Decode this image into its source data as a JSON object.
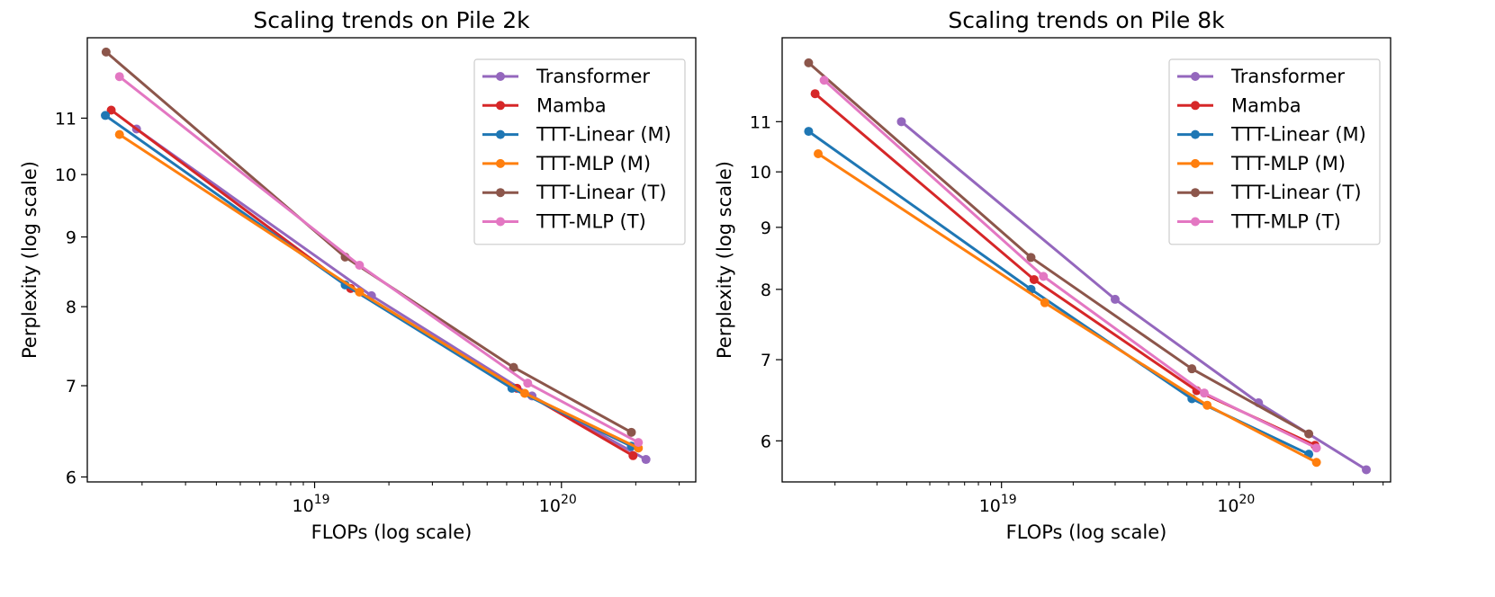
{
  "chart_data": [
    {
      "type": "line",
      "title": "Scaling trends on Pile 2k",
      "xlabel": "FLOPs (log scale)",
      "ylabel": "Perplexity (log scale)",
      "xscale": "log",
      "yscale": "log",
      "xlim": [
        1.2e+18,
        3.5e+20
      ],
      "ylim": [
        5.95,
        12.6
      ],
      "xticks": [
        {
          "value": 1e+19,
          "base": "10",
          "exp": "19"
        },
        {
          "value": 1e+20,
          "base": "10",
          "exp": "20"
        }
      ],
      "yticks": [
        {
          "value": 6,
          "label": "6"
        },
        {
          "value": 7,
          "label": "7"
        },
        {
          "value": 8,
          "label": "8"
        },
        {
          "value": 9,
          "label": "9"
        },
        {
          "value": 10,
          "label": "10"
        },
        {
          "value": 11,
          "label": "11"
        }
      ],
      "legend_position": "top-right",
      "series": [
        {
          "name": "Transformer",
          "color": "#9467bd",
          "x": [
            1.9e+18,
            1.7e+19,
            7.6e+19,
            2.2e+20
          ],
          "y": [
            10.8,
            8.15,
            6.88,
            6.18
          ]
        },
        {
          "name": "Mamba",
          "color": "#d62728",
          "x": [
            1.5e+18,
            1.4e+19,
            6.6e+19,
            1.95e+20
          ],
          "y": [
            11.15,
            8.25,
            6.97,
            6.22
          ]
        },
        {
          "name": "TTT-Linear (M)",
          "color": "#1f77b4",
          "x": [
            1.42e+18,
            1.33e+19,
            6.3e+19,
            1.92e+20
          ],
          "y": [
            11.05,
            8.3,
            6.97,
            6.32
          ]
        },
        {
          "name": "TTT-MLP (M)",
          "color": "#ff7f0e",
          "x": [
            1.62e+18,
            1.52e+19,
            7.1e+19,
            2.05e+20
          ],
          "y": [
            10.7,
            8.2,
            6.91,
            6.3
          ]
        },
        {
          "name": "TTT-Linear (T)",
          "color": "#8c564b",
          "x": [
            1.43e+18,
            1.33e+19,
            6.4e+19,
            1.92e+20
          ],
          "y": [
            12.3,
            8.7,
            7.22,
            6.47
          ]
        },
        {
          "name": "TTT-MLP (T)",
          "color": "#e377c2",
          "x": [
            1.62e+18,
            1.52e+19,
            7.3e+19,
            2.05e+20
          ],
          "y": [
            11.8,
            8.58,
            7.03,
            6.36
          ]
        }
      ]
    },
    {
      "type": "line",
      "title": "Scaling trends on Pile 8k",
      "xlabel": "FLOPs (log scale)",
      "ylabel": "Perplexity (log scale)",
      "xscale": "log",
      "yscale": "log",
      "xlim": [
        1.2e+18,
        4.3e+20
      ],
      "ylim": [
        5.55,
        12.9
      ],
      "xticks": [
        {
          "value": 1e+19,
          "base": "10",
          "exp": "19"
        },
        {
          "value": 1e+20,
          "base": "10",
          "exp": "20"
        }
      ],
      "yticks": [
        {
          "value": 6,
          "label": "6"
        },
        {
          "value": 7,
          "label": "7"
        },
        {
          "value": 8,
          "label": "8"
        },
        {
          "value": 9,
          "label": "9"
        },
        {
          "value": 10,
          "label": "10"
        },
        {
          "value": 11,
          "label": "11"
        }
      ],
      "legend_position": "top-right",
      "series": [
        {
          "name": "Transformer",
          "color": "#9467bd",
          "x": [
            3.8e+18,
            3e+19,
            1.2e+20,
            3.4e+20
          ],
          "y": [
            11.0,
            7.85,
            6.45,
            5.68
          ]
        },
        {
          "name": "Mamba",
          "color": "#d62728",
          "x": [
            1.65e+18,
            1.37e+19,
            6.6e+19,
            2.07e+20
          ],
          "y": [
            11.6,
            8.15,
            6.6,
            5.95
          ]
        },
        {
          "name": "TTT-Linear (M)",
          "color": "#1f77b4",
          "x": [
            1.55e+18,
            1.33e+19,
            6.3e+19,
            1.95e+20
          ],
          "y": [
            10.8,
            8.0,
            6.5,
            5.85
          ]
        },
        {
          "name": "TTT-MLP (M)",
          "color": "#ff7f0e",
          "x": [
            1.7e+18,
            1.52e+19,
            7.3e+19,
            2.1e+20
          ],
          "y": [
            10.35,
            7.8,
            6.42,
            5.76
          ]
        },
        {
          "name": "TTT-Linear (T)",
          "color": "#8c564b",
          "x": [
            1.55e+18,
            1.33e+19,
            6.3e+19,
            1.95e+20
          ],
          "y": [
            12.3,
            8.5,
            6.88,
            6.08
          ]
        },
        {
          "name": "TTT-MLP (T)",
          "color": "#e377c2",
          "x": [
            1.8e+18,
            1.5e+19,
            7.1e+19,
            2.1e+20
          ],
          "y": [
            11.9,
            8.2,
            6.57,
            5.92
          ]
        }
      ]
    }
  ]
}
